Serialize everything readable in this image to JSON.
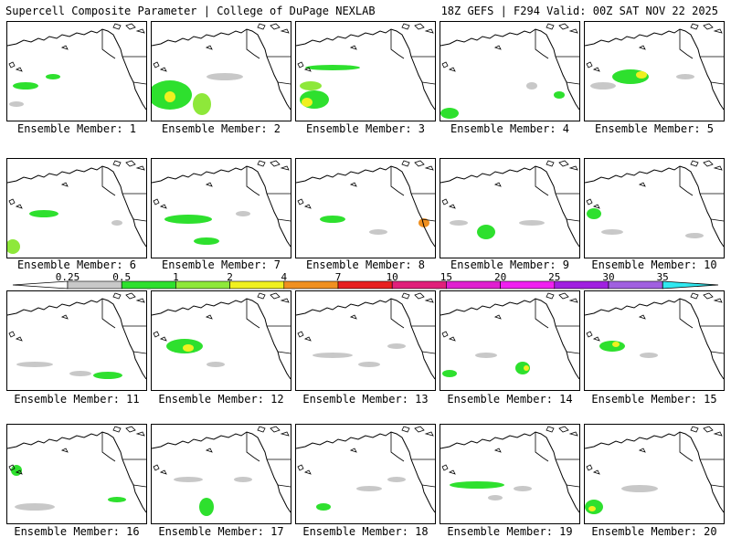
{
  "header": {
    "title": "Supercell Composite Parameter | College of DuPage NEXLAB",
    "run_info": "18Z GEFS | F294 Valid: 00Z SAT NOV 22 2025"
  },
  "panels": [
    {
      "caption": "Ensemble Member: 1"
    },
    {
      "caption": "Ensemble Member: 2"
    },
    {
      "caption": "Ensemble Member: 3"
    },
    {
      "caption": "Ensemble Member: 4"
    },
    {
      "caption": "Ensemble Member: 5"
    },
    {
      "caption": "Ensemble Member: 6"
    },
    {
      "caption": "Ensemble Member: 7"
    },
    {
      "caption": "Ensemble Member: 8"
    },
    {
      "caption": "Ensemble Member: 9"
    },
    {
      "caption": "Ensemble Member: 10"
    },
    {
      "caption": "Ensemble Member: 11"
    },
    {
      "caption": "Ensemble Member: 12"
    },
    {
      "caption": "Ensemble Member: 13"
    },
    {
      "caption": "Ensemble Member: 14"
    },
    {
      "caption": "Ensemble Member: 15"
    },
    {
      "caption": "Ensemble Member: 16"
    },
    {
      "caption": "Ensemble Member: 17"
    },
    {
      "caption": "Ensemble Member: 18"
    },
    {
      "caption": "Ensemble Member: 19"
    },
    {
      "caption": "Ensemble Member: 20"
    }
  ],
  "colorbar": {
    "labels": [
      "0.25",
      "0.5",
      "1",
      "2",
      "4",
      "7",
      "10",
      "15",
      "20",
      "25",
      "30",
      "35"
    ],
    "colors": [
      "#c8c8c8",
      "#2ee02e",
      "#8ee83a",
      "#f0f020",
      "#f09020",
      "#e82020",
      "#e0207a",
      "#e020d0",
      "#f020f0",
      "#a020e0",
      "#a060e0",
      "#30e8f0"
    ]
  }
}
